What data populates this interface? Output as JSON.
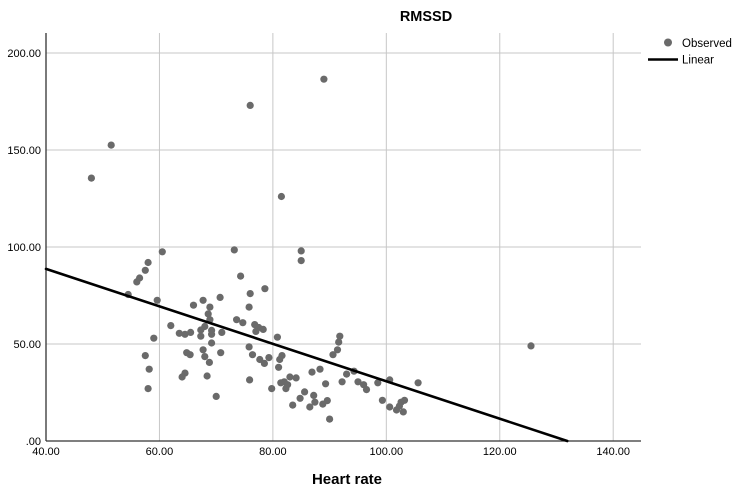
{
  "title": "RMSSD",
  "x_axis_title": "Heart rate",
  "legend": {
    "position": "top-right",
    "items": [
      {
        "label": "Observed",
        "marker": "dot",
        "color": "#6a6a6a"
      },
      {
        "label": "Linear",
        "marker": "line",
        "color": "#000000"
      }
    ]
  },
  "colors": {
    "background": "#ffffff",
    "point": "#6a6a6a",
    "fit_line": "#000000",
    "gridline": "#c7c7c7",
    "axis": "#333333",
    "text": "#000000"
  },
  "chart_data": {
    "type": "scatter",
    "title": "RMSSD",
    "xlabel": "Heart rate",
    "ylabel": "",
    "xlim": [
      40,
      144.9
    ],
    "ylim": [
      0,
      210.3
    ],
    "grid": true,
    "legend_position": "top-right",
    "x_ticks": [
      40,
      60,
      80,
      100,
      120,
      140
    ],
    "x_tick_labels": [
      "40.00",
      "60.00",
      "80.00",
      "100.00",
      "120.00",
      "140.00"
    ],
    "y_ticks": [
      0,
      50,
      100,
      150,
      200
    ],
    "y_tick_labels": [
      ".00",
      "50.00",
      "100.00",
      "150.00",
      "200.00"
    ],
    "x_gridlines": [
      60,
      80,
      100,
      120,
      140
    ],
    "y_gridlines": [
      50,
      100,
      150,
      200
    ],
    "series": [
      {
        "name": "Observed",
        "type": "scatter",
        "color": "#6a6a6a",
        "points": [
          [
            48,
            135.5
          ],
          [
            51.5,
            152.5
          ],
          [
            76,
            173
          ],
          [
            89,
            186.5
          ],
          [
            81.5,
            126
          ],
          [
            125.5,
            49
          ],
          [
            60.5,
            97.5
          ],
          [
            58,
            92
          ],
          [
            57.5,
            88
          ],
          [
            56.5,
            84
          ],
          [
            56,
            82
          ],
          [
            54.5,
            75.5
          ],
          [
            59.6,
            72.5
          ],
          [
            73.2,
            98.5
          ],
          [
            74.3,
            85
          ],
          [
            76,
            76
          ],
          [
            75.8,
            69
          ],
          [
            85,
            98
          ],
          [
            85,
            93
          ],
          [
            78.6,
            78.5
          ],
          [
            62,
            59.5
          ],
          [
            63.5,
            55.5
          ],
          [
            64.5,
            55
          ],
          [
            65.5,
            56
          ],
          [
            67.3,
            57.2
          ],
          [
            67.3,
            54
          ],
          [
            66,
            70
          ],
          [
            67.7,
            72.5
          ],
          [
            70.7,
            74
          ],
          [
            68.9,
            69
          ],
          [
            68.6,
            65.5
          ],
          [
            68.9,
            62.5
          ],
          [
            68,
            59
          ],
          [
            69.2,
            57
          ],
          [
            69.2,
            55
          ],
          [
            71,
            56
          ],
          [
            73.6,
            62.5
          ],
          [
            74.7,
            61
          ],
          [
            76.8,
            60
          ],
          [
            77.5,
            58.5
          ],
          [
            78.3,
            57.5
          ],
          [
            77,
            56.5
          ],
          [
            80.8,
            53.5
          ],
          [
            69.2,
            50.5
          ],
          [
            59,
            53
          ],
          [
            57.5,
            44
          ],
          [
            58.2,
            37
          ],
          [
            58,
            27
          ],
          [
            64.8,
            45.5
          ],
          [
            65.4,
            44.5
          ],
          [
            67.7,
            47
          ],
          [
            68,
            43.5
          ],
          [
            68.8,
            40.5
          ],
          [
            70.8,
            45.5
          ],
          [
            64.5,
            35
          ],
          [
            64,
            33
          ],
          [
            68.4,
            33.5
          ],
          [
            70,
            23
          ],
          [
            75.8,
            48.5
          ],
          [
            76.4,
            44.5
          ],
          [
            77.7,
            42
          ],
          [
            78.5,
            40
          ],
          [
            75.9,
            31.5
          ],
          [
            79.3,
            43
          ],
          [
            81,
            38
          ],
          [
            81.6,
            44
          ],
          [
            81.2,
            42
          ],
          [
            81.4,
            30
          ],
          [
            82,
            30.5
          ],
          [
            83,
            33
          ],
          [
            84.1,
            32.5
          ],
          [
            82.6,
            29
          ],
          [
            79.8,
            27
          ],
          [
            82.3,
            27
          ],
          [
            83.5,
            18.5
          ],
          [
            84.8,
            22
          ],
          [
            85.6,
            25.3
          ],
          [
            86.5,
            17.5
          ],
          [
            87.2,
            23.5
          ],
          [
            87.4,
            20
          ],
          [
            89.3,
            29.5
          ],
          [
            89.6,
            20.8
          ],
          [
            88.8,
            19
          ],
          [
            90,
            11.3
          ],
          [
            88.3,
            37
          ],
          [
            86.9,
            35.5
          ],
          [
            90.6,
            44.5
          ],
          [
            91.4,
            47
          ],
          [
            91.6,
            51
          ],
          [
            91.8,
            54
          ],
          [
            92.2,
            30.5
          ],
          [
            93,
            34.5
          ],
          [
            94.3,
            36
          ],
          [
            95,
            30.5
          ],
          [
            96,
            29
          ],
          [
            96.5,
            26.5
          ],
          [
            98.5,
            30
          ],
          [
            99.3,
            21
          ],
          [
            100.6,
            31.5
          ],
          [
            100.6,
            17.5
          ],
          [
            101.8,
            16
          ],
          [
            103,
            15
          ],
          [
            102.3,
            18
          ],
          [
            102.6,
            20
          ],
          [
            103.2,
            21
          ],
          [
            105.6,
            30
          ]
        ]
      },
      {
        "name": "Linear",
        "type": "line",
        "color": "#000000",
        "x_start": 40,
        "y_start": 88.7,
        "x_end": 131.9,
        "y_end": 0
      }
    ]
  }
}
